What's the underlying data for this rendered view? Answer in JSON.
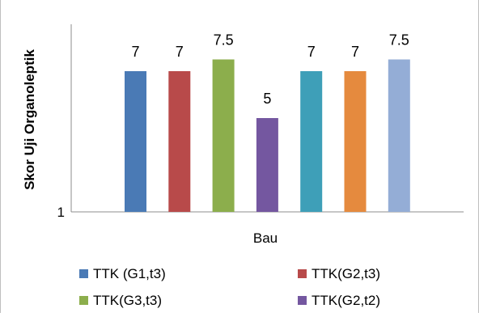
{
  "chart_data": {
    "type": "bar",
    "ylabel": "Skor Uji Organoleptik",
    "xlabel": "Bau",
    "y_tick_label": "1",
    "ylim": [
      1,
      9
    ],
    "grid": false,
    "legend_position": "bottom",
    "series": [
      {
        "name": "TTK (G1,t3)",
        "value": 7,
        "label": "7",
        "color": "#4a7ab5"
      },
      {
        "name": "TTK(G2,t3)",
        "value": 7,
        "label": "7",
        "color": "#b84a4a"
      },
      {
        "name": "TTK(G3,t3)",
        "value": 7.5,
        "label": "7.5",
        "color": "#8cae4c"
      },
      {
        "name": "TTK(G2,t2)",
        "value": 5,
        "label": "5",
        "color": "#7457a0"
      },
      {
        "name": "",
        "value": 7,
        "label": "7",
        "color": "#3e9fb8"
      },
      {
        "name": "",
        "value": 7,
        "label": "7",
        "color": "#e58a3e"
      },
      {
        "name": "",
        "value": 7.5,
        "label": "7.5",
        "color": "#94add6"
      }
    ]
  }
}
